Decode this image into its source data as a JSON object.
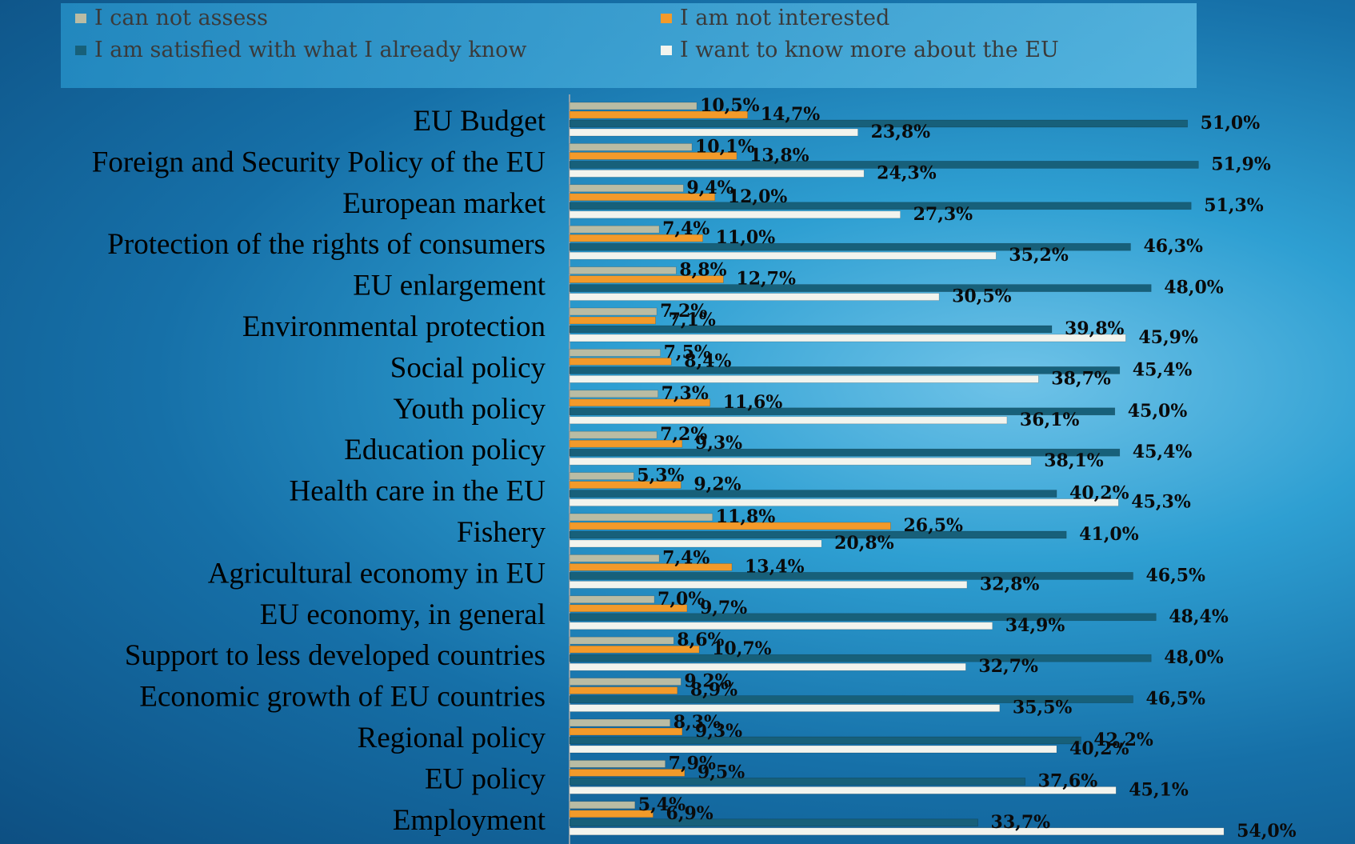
{
  "colors": {
    "cannot_assess": "#b9bca4",
    "not_interested": "#f39a2a",
    "satisfied": "#17607a",
    "want_more": "#f2f4ee"
  },
  "chart_data": {
    "type": "bar",
    "orientation": "horizontal",
    "legend_position": "top",
    "grid": false,
    "xlim": [
      0,
      60
    ],
    "categories": [
      "EU Budget",
      "Foreign and Security Policy of the EU",
      "European market",
      "Protection of the rights of consumers",
      "EU enlargement",
      "Environmental protection",
      "Social policy",
      "Youth policy",
      "Education policy",
      "Health care in the EU",
      "Fishery",
      "Agricultural economy in EU",
      "EU economy, in general",
      "Support to less developed countries",
      "Economic growth of EU countries",
      "Regional policy",
      "EU policy",
      "Employment"
    ],
    "series": [
      {
        "name": "I can not assess",
        "color": "#b9bca4",
        "values": [
          10.5,
          10.1,
          9.4,
          7.4,
          8.8,
          7.2,
          7.5,
          7.3,
          7.2,
          5.3,
          11.8,
          7.4,
          7.0,
          8.6,
          9.2,
          8.3,
          7.9,
          5.4
        ],
        "labels": [
          "10,5%",
          "10,1%",
          "9,4%",
          "7,4%",
          "8,8%",
          "7,2%",
          "7,5%",
          "7,3%",
          "7,2%",
          "5,3%",
          "11,8%",
          "7,4%",
          "7,0%",
          "8,6%",
          "9,2%",
          "8,3%",
          "7,9%",
          "5,4%"
        ]
      },
      {
        "name": "I am not interested",
        "color": "#f39a2a",
        "values": [
          14.7,
          13.8,
          12.0,
          11.0,
          12.7,
          7.1,
          8.4,
          11.6,
          9.3,
          9.2,
          26.5,
          13.4,
          9.7,
          10.7,
          8.9,
          9.3,
          9.5,
          6.9
        ],
        "labels": [
          "14,7%",
          "13,8%",
          "12,0%",
          "11,0%",
          "12,7%",
          "7,1%",
          "8,4%",
          "11,6%",
          "9,3%",
          "9,2%",
          "26,5%",
          "13,4%",
          "9,7%",
          "10,7%",
          "8,9%",
          "9,3%",
          "9,5%",
          "6,9%"
        ]
      },
      {
        "name": "I am satisfied with what I already know",
        "color": "#17607a",
        "values": [
          51.0,
          51.9,
          51.3,
          46.3,
          48.0,
          39.8,
          45.4,
          45.0,
          45.4,
          40.2,
          41.0,
          46.5,
          48.4,
          48.0,
          46.5,
          42.2,
          37.6,
          33.7
        ],
        "labels": [
          "51,0%",
          "51,9%",
          "51,3%",
          "46,3%",
          "48,0%",
          "39,8%",
          "45,4%",
          "45,0%",
          "45,4%",
          "40,2%",
          "41,0%",
          "46,5%",
          "48,4%",
          "48,0%",
          "46,5%",
          "42,2%",
          "37,6%",
          "33,7%"
        ]
      },
      {
        "name": "I want to know more about the EU",
        "color": "#f2f4ee",
        "values": [
          23.8,
          24.3,
          27.3,
          35.2,
          30.5,
          45.9,
          38.7,
          36.1,
          38.1,
          45.3,
          20.8,
          32.8,
          34.9,
          32.7,
          35.5,
          40.2,
          45.1,
          54.0
        ],
        "labels": [
          "23,8%",
          "24,3%",
          "27,3%",
          "35,2%",
          "30,5%",
          "45,9%",
          "38,7%",
          "36,1%",
          "38,1%",
          "45,3%",
          "20,8%",
          "32,8%",
          "34,9%",
          "32,7%",
          "35,5%",
          "40,2%",
          "45,1%",
          "54,0%"
        ]
      }
    ]
  }
}
